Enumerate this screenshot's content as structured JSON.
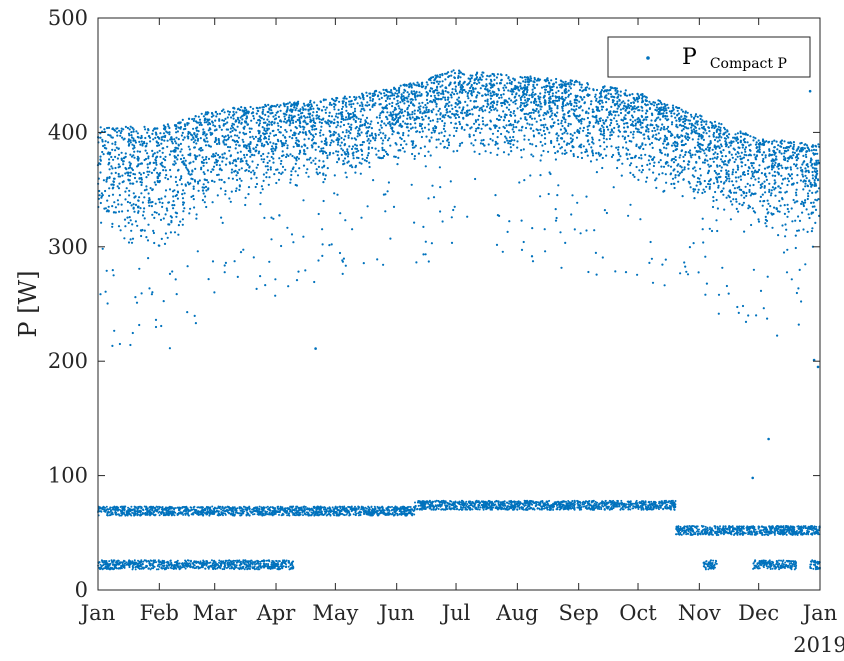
{
  "chart_data": {
    "type": "scatter",
    "title": "",
    "xlabel": "",
    "ylabel": "P [W]",
    "x_ticks": [
      "Jan",
      "Feb",
      "Mar",
      "Apr",
      "May",
      "Jun",
      "Jul",
      "Aug",
      "Sep",
      "Oct",
      "Nov",
      "Dec",
      "Jan"
    ],
    "x_secondary_label": "2019",
    "xlim": [
      "2019-01-01",
      "2020-01-01"
    ],
    "ylim": [
      0,
      500
    ],
    "y_ticks": [
      0,
      100,
      200,
      300,
      400,
      500
    ],
    "grid": false,
    "legend": {
      "position": "top-right",
      "marker": "·",
      "label_main": "P",
      "label_sub": "Compact P"
    },
    "color": "#0072BD",
    "series": [
      {
        "name": "P Compact P",
        "description_of_bands": "daytime power band (upper) plus low-power bands",
        "upper_band_envelope": {
          "month_start": [
            "2019-01-01",
            "2019-02-01",
            "2019-03-01",
            "2019-04-01",
            "2019-05-01",
            "2019-06-01",
            "2019-07-01",
            "2019-08-01",
            "2019-09-01",
            "2019-10-01",
            "2019-11-01",
            "2019-12-01",
            "2020-01-01"
          ],
          "typical_max_W": [
            405,
            405,
            420,
            425,
            430,
            440,
            455,
            450,
            445,
            435,
            415,
            395,
            390
          ],
          "typical_min_W": [
            300,
            290,
            330,
            345,
            355,
            370,
            380,
            375,
            370,
            355,
            335,
            310,
            300
          ]
        },
        "mid_band": [
          {
            "x_start": "2019-01-01",
            "x_end": "2019-06-10",
            "y": 69
          },
          {
            "x_start": "2019-06-10",
            "x_end": "2019-10-20",
            "y": 74
          },
          {
            "x_start": "2019-10-20",
            "x_end": "2020-01-01",
            "y": 52
          }
        ],
        "low_band": [
          {
            "x_start": "2019-01-01",
            "x_end": "2019-03-20",
            "y": 22
          },
          {
            "x_start": "2019-03-20",
            "x_end": "2019-04-10",
            "y": 22
          },
          {
            "x_start": "2019-11-03",
            "x_end": "2019-11-10",
            "y": 22
          },
          {
            "x_start": "2019-11-28",
            "x_end": "2019-12-20",
            "y": 22
          },
          {
            "x_start": "2019-12-27",
            "x_end": "2020-01-01",
            "y": 22
          }
        ],
        "outliers": [
          {
            "x": "2019-04-21",
            "y": 211
          },
          {
            "x": "2019-12-06",
            "y": 132
          },
          {
            "x": "2019-11-28",
            "y": 98
          },
          {
            "x": "2019-12-29",
            "y": 201
          },
          {
            "x": "2019-12-31",
            "y": 195
          },
          {
            "x": "2019-12-27",
            "y": 436
          }
        ]
      }
    ]
  }
}
